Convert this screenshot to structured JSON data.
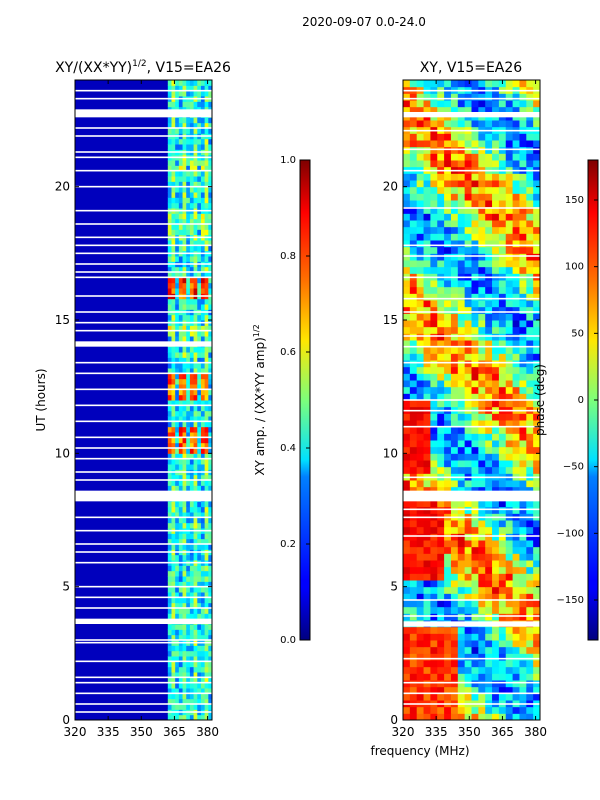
{
  "suptitle": "2020-09-07 0.0-24.0",
  "shared_xlabel": "frequency (MHz)",
  "chart_data": [
    {
      "type": "heatmap",
      "title_main": "XY/(XX*YY)",
      "title_exp": "1/2",
      "title_suffix": ", V15=EA26",
      "xlabel": "",
      "ylabel": "UT (hours)",
      "xlim": [
        320,
        382
      ],
      "ylim": [
        0,
        24
      ],
      "xticks": [
        320,
        335,
        350,
        365,
        380
      ],
      "yticks": [
        0,
        5,
        10,
        15,
        20
      ],
      "colorbar": {
        "label_main": "XY amp. / (XX*YY amp)",
        "label_exp": "1/2",
        "range": [
          0.0,
          1.0
        ],
        "ticks": [
          0.0,
          0.2,
          0.4,
          0.6,
          0.8,
          1.0
        ],
        "tick_labels": [
          "0.0",
          "0.2",
          "0.4",
          "0.6",
          "0.8",
          "1.0"
        ]
      },
      "signal_band_mhz": [
        362,
        382
      ],
      "flagged_gaps_hours": [
        [
          8.2,
          8.6
        ],
        [
          3.6,
          3.8
        ],
        [
          22.6,
          22.9
        ],
        [
          14.0,
          14.2
        ]
      ],
      "flagged_lines_hours": [
        0.3,
        0.6,
        1.0,
        1.4,
        1.6,
        2.2,
        2.9,
        3.0,
        4.2,
        4.6,
        5.0,
        5.9,
        6.3,
        6.6,
        7.1,
        7.6,
        9.0,
        9.3,
        9.8,
        10.2,
        10.6,
        11.2,
        11.8,
        12.4,
        13.0,
        13.4,
        14.6,
        14.9,
        15.3,
        15.9,
        16.6,
        16.8,
        17.1,
        17.5,
        17.8,
        18.1,
        18.6,
        19.1,
        20.0,
        20.6,
        21.1,
        21.3,
        21.9,
        22.2,
        23.3,
        23.6
      ],
      "hot_spots": [
        {
          "hours": [
            10.0,
            11.0
          ],
          "amp": 0.75
        },
        {
          "hours": [
            12.0,
            13.0
          ],
          "amp": 0.75
        },
        {
          "hours": [
            15.8,
            16.6
          ],
          "amp": 0.8
        },
        {
          "hours": [
            14.3,
            14.8
          ],
          "amp": 0.55
        },
        {
          "hours": [
            18.0,
            19.0
          ],
          "amp": 0.5
        },
        {
          "hours": [
            20.5,
            21.0
          ],
          "amp": 0.5
        }
      ]
    },
    {
      "type": "heatmap",
      "title": "XY, V15=EA26",
      "xlabel": "",
      "ylabel": "",
      "xlim": [
        320,
        382
      ],
      "ylim": [
        0,
        24
      ],
      "xticks": [
        320,
        335,
        350,
        365,
        380
      ],
      "yticks": [
        0,
        5,
        10,
        15,
        20
      ],
      "colorbar": {
        "label": "phase (deg)",
        "range": [
          -180,
          180
        ],
        "ticks": [
          -150,
          -100,
          -50,
          0,
          50,
          100,
          150
        ],
        "tick_labels": [
          "−150",
          "−100",
          "−50",
          "0",
          "50",
          "100",
          "150"
        ]
      },
      "flagged_gaps_hours": [
        [
          8.2,
          8.6
        ],
        [
          3.5,
          3.7
        ],
        [
          22.6,
          22.8
        ]
      ],
      "flagged_lines_hours": [
        0.6,
        1.0,
        1.4,
        2.3,
        3.9,
        4.5,
        6.9,
        7.6,
        7.9,
        9.1,
        11.0,
        11.6,
        12.0,
        13.4,
        14.0,
        14.4,
        15.3,
        15.8,
        16.6,
        17.4,
        17.8,
        19.2,
        20.6,
        21.4,
        22.1,
        23.3,
        23.6
      ]
    }
  ]
}
